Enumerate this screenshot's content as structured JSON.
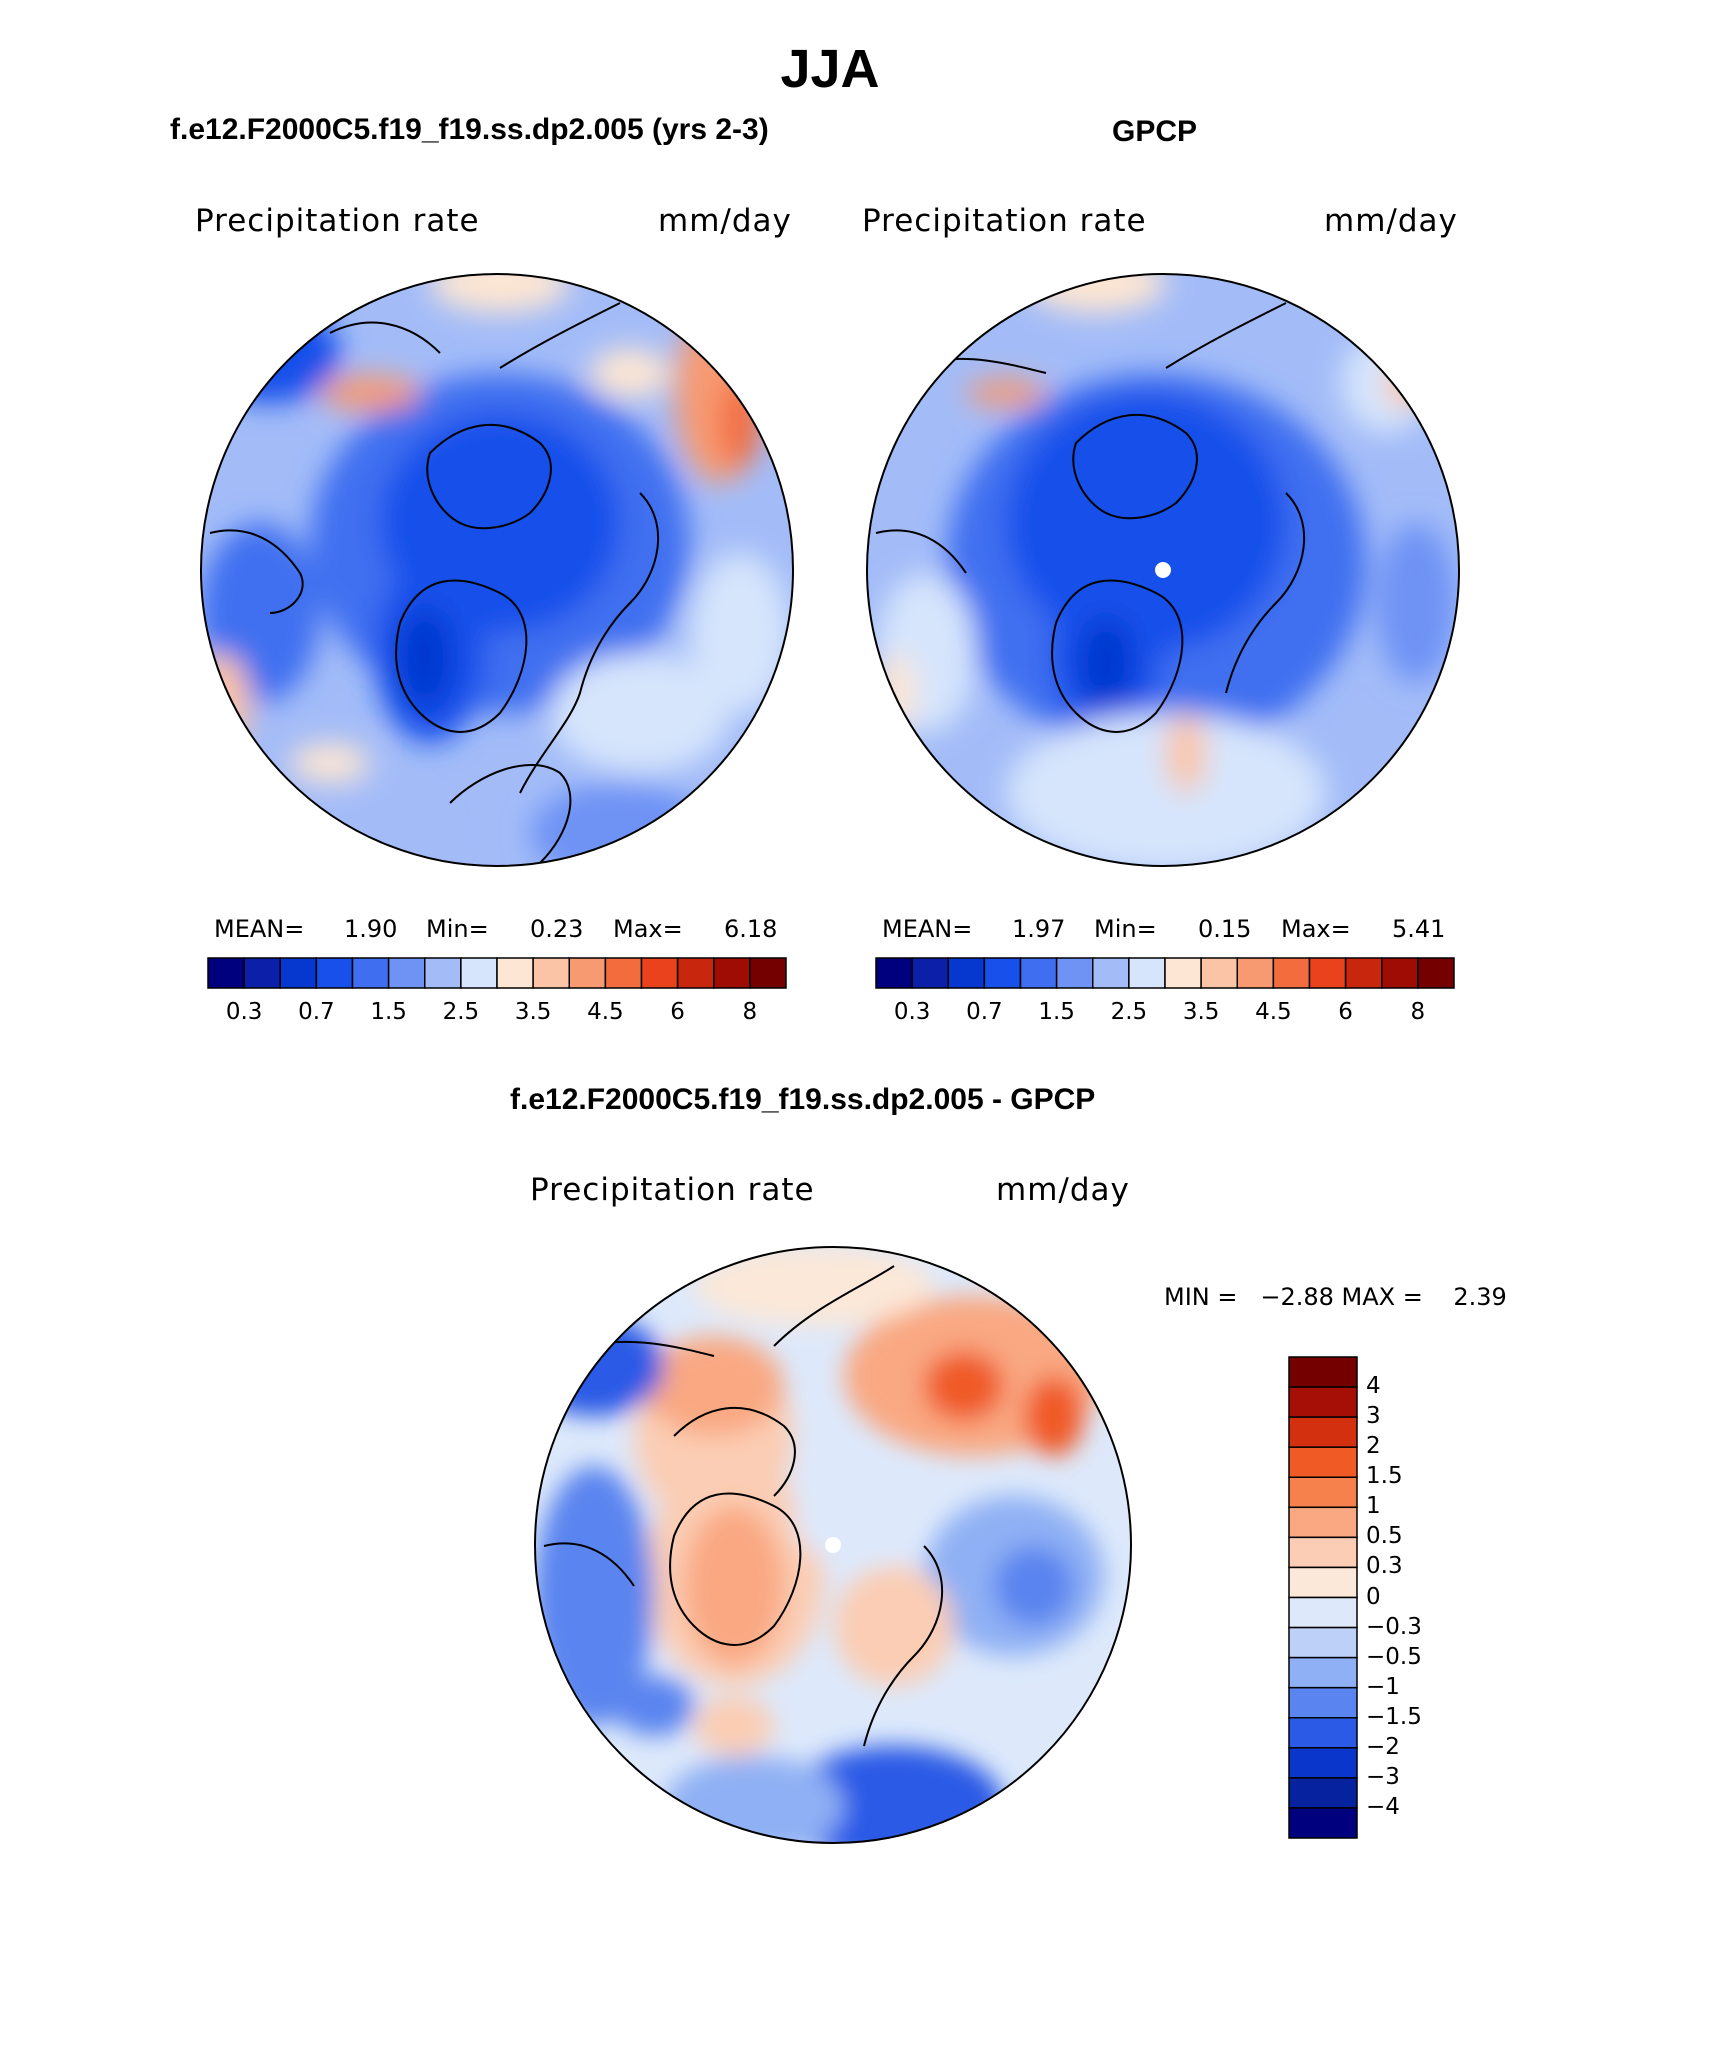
{
  "title": "JJA",
  "panels": [
    {
      "title": "f.e12.F2000C5.f19_f19.ss.dp2.005 (yrs 2-3)",
      "variable": "Precipitation rate",
      "units": "mm/day",
      "stats": {
        "mean_label": "MEAN=",
        "mean": "1.90",
        "min_label": "Min=",
        "min": "0.23",
        "max_label": "Max=",
        "max": "6.18"
      }
    },
    {
      "title": "GPCP",
      "variable": "Precipitation rate",
      "units": "mm/day",
      "stats": {
        "mean_label": "MEAN=",
        "mean": "1.97",
        "min_label": "Min=",
        "min": "0.15",
        "max_label": "Max=",
        "max": "5.41"
      }
    }
  ],
  "colorbar": {
    "colors": [
      "#00007f",
      "#0b1fa8",
      "#0637cf",
      "#1750ea",
      "#3f6ff0",
      "#6e93f5",
      "#a3bcf8",
      "#d6e5fc",
      "#fde6d3",
      "#fbc4a6",
      "#f79a72",
      "#f36c3e",
      "#e9421d",
      "#c8260d",
      "#9e0c04",
      "#740000"
    ],
    "tick_labels": [
      "0.3",
      "0.7",
      "1.5",
      "2.5",
      "3.5",
      "4.5",
      "6",
      "8"
    ]
  },
  "difference": {
    "title": "f.e12.F2000C5.f19_f19.ss.dp2.005 - GPCP",
    "variable": "Precipitation rate",
    "units": "mm/day",
    "minmax_text": "MIN =   −2.88 MAX =    2.39",
    "colors_top_to_bottom": [
      "#740000",
      "#a60f06",
      "#d3300f",
      "#f05a25",
      "#f7814c",
      "#f9a882",
      "#fbcdb4",
      "#fbe8d8",
      "#dde9fb",
      "#bdd1f8",
      "#8fb0f4",
      "#5a84ef",
      "#2a5ae6",
      "#0a36cc",
      "#06229e",
      "#00007f"
    ],
    "labels": [
      "4",
      "3",
      "2",
      "1.5",
      "1",
      "0.5",
      "0.3",
      "0",
      "−0.3",
      "−0.5",
      "−1",
      "−1.5",
      "−2",
      "−3",
      "−4"
    ]
  }
}
